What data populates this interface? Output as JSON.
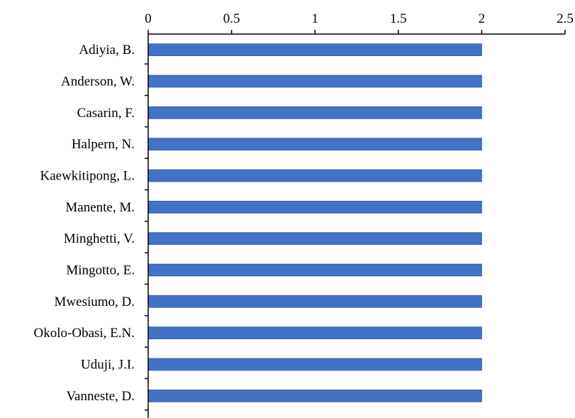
{
  "chart_data": {
    "type": "bar",
    "orientation": "horizontal",
    "x_axis_position": "top",
    "categories": [
      "Adiyia, B.",
      "Anderson, W.",
      "Casarin, F.",
      "Halpern, N.",
      "Kaewkitipong, L.",
      "Manente, M.",
      "Minghetti, V.",
      "Mingotto, E.",
      "Mwesiumo, D.",
      "Okolo-Obasi, E.N.",
      "Uduji, J.I.",
      "Vanneste, D."
    ],
    "values": [
      2,
      2,
      2,
      2,
      2,
      2,
      2,
      2,
      2,
      2,
      2,
      2
    ],
    "xlim": [
      0,
      2.5
    ],
    "x_ticks": [
      0,
      0.5,
      1,
      1.5,
      2,
      2.5
    ],
    "x_tick_labels": [
      "0",
      "0.5",
      "1",
      "1.5",
      "2",
      "2.5"
    ],
    "grid": false,
    "bar_color": "#4472c4",
    "bar_edge_color": "#2f5597"
  }
}
